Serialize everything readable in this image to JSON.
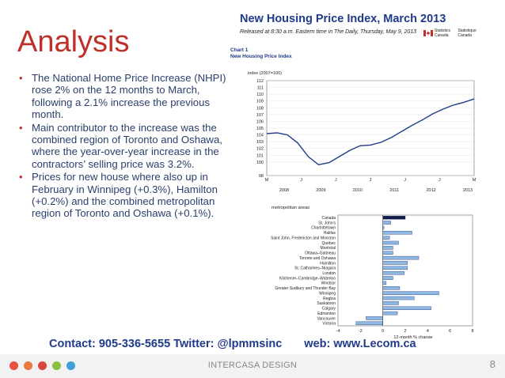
{
  "slide": {
    "title": "Analysis",
    "bullets": [
      "The National Home Price Increase (NHPI) rose 2% on the 12 months to March, following a 2.1% increase the previous month.",
      "Main contributor to the increase was the combined region of Toronto and Oshawa, where the year-over-year increase in the contractors’ selling price was 3.2%.",
      "Prices for new house where also up in February in Winnipeg (+0.3%), Hamilton (+0.2%) and the combined metropolitan region of Toronto and Oshawa (+0.1%)."
    ],
    "contact": "Contact: 905-336-5655 Twitter: @lpmmsinc",
    "web": "web: www.Lecom.ca",
    "footer_text": "INTERCASA DESIGN",
    "page_number": "8",
    "footer_dot_colors": [
      "#e8523f",
      "#e87a3f",
      "#d8463b",
      "#8bbf3f",
      "#3fa0d8"
    ]
  },
  "release": {
    "title": "New Housing Price Index, March 2013",
    "subtitle": "Released at 8:30 a.m. Eastern time in The Daily, Thursday, May 9, 2013",
    "agency_en": "Statistics Canada",
    "agency_fr": "Statistique Canada",
    "chart_number": "Chart 1",
    "chart_heading": "New Housing Price Index"
  },
  "chart_data": [
    {
      "type": "line",
      "ylabel": "index (2007=100)",
      "ylim": [
        98,
        112
      ],
      "yticks": [
        98,
        100,
        101,
        102,
        103,
        104,
        105,
        106,
        107,
        108,
        109,
        110,
        111,
        112
      ],
      "month_ticks": [
        "M",
        "J",
        "J",
        "J",
        "J",
        "J",
        "M"
      ],
      "year_ticks": [
        "2008",
        "2009",
        "2010",
        "2011",
        "2012",
        "2013"
      ],
      "x": [
        "2008-03",
        "2008-06",
        "2008-09",
        "2008-12",
        "2009-03",
        "2009-06",
        "2009-09",
        "2009-12",
        "2010-03",
        "2010-06",
        "2010-09",
        "2010-12",
        "2011-03",
        "2011-06",
        "2011-09",
        "2011-12",
        "2012-03",
        "2012-06",
        "2012-09",
        "2012-12",
        "2013-03"
      ],
      "values": [
        104.2,
        104.3,
        104.0,
        102.8,
        100.8,
        99.6,
        99.9,
        100.8,
        101.7,
        102.4,
        102.5,
        102.9,
        103.6,
        104.5,
        105.4,
        106.2,
        107.1,
        107.8,
        108.4,
        108.8,
        109.3
      ]
    },
    {
      "type": "bar",
      "title": "metropolitan areas",
      "xlabel": "12-month % change",
      "xlim": [
        -4,
        8
      ],
      "xticks": [
        -4,
        -2,
        0,
        2,
        4,
        6,
        8
      ],
      "categories": [
        "Canada",
        "St. John's",
        "Charlottetown",
        "Halifax",
        "Saint John, Fredericton and Moncton",
        "Québec",
        "Montréal",
        "Ottawa–Gatineau",
        "Toronto and Oshawa",
        "Hamilton",
        "St. Catharines–Niagara",
        "London",
        "Kitchener–Cambridge–Waterloo",
        "Windsor",
        "Greater Sudbury and Thunder Bay",
        "Winnipeg",
        "Regina",
        "Saskatoon",
        "Calgary",
        "Edmonton",
        "Vancouver",
        "Victoria"
      ],
      "values": [
        2.0,
        0.7,
        0.1,
        2.6,
        0.6,
        1.4,
        0.9,
        0.9,
        3.2,
        2.2,
        2.2,
        1.9,
        0.9,
        0.3,
        1.5,
        5.0,
        2.8,
        1.4,
        4.3,
        1.3,
        -1.5,
        -2.4
      ]
    }
  ]
}
